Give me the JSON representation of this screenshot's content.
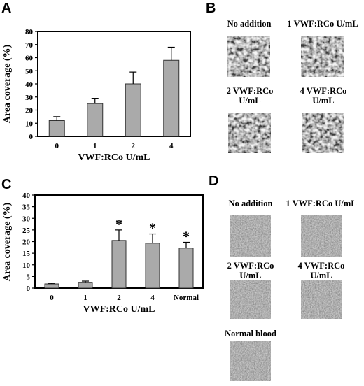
{
  "panels": {
    "a": "A",
    "b": "B",
    "c": "C",
    "d": "D"
  },
  "chart_data": [
    {
      "type": "bar",
      "panel": "A",
      "categories": [
        "0",
        "1",
        "2",
        "4"
      ],
      "values": [
        12,
        25,
        40,
        58
      ],
      "errors": [
        3,
        4,
        9,
        10
      ],
      "xlabel": "VWF:RCo U/mL",
      "ylabel": "Area coverage (%)",
      "ylim": [
        0,
        80
      ],
      "yticks": [
        "0",
        "10",
        "20",
        "30",
        "40",
        "50",
        "60",
        "70",
        "80"
      ],
      "bar_color": "#aaaaaa",
      "annotations": []
    },
    {
      "type": "bar",
      "panel": "C",
      "categories": [
        "0",
        "1",
        "2",
        "4",
        "Normal"
      ],
      "values": [
        1.8,
        2.5,
        20.5,
        19.3,
        17.2
      ],
      "errors": [
        0.3,
        0.5,
        4.5,
        4,
        2.5
      ],
      "xlabel": "VWF:RCo U/mL",
      "ylabel": "Area coverage (%)",
      "ylim": [
        0,
        40
      ],
      "yticks": [
        "0",
        "5",
        "10",
        "15",
        "20",
        "25",
        "30",
        "35",
        "40"
      ],
      "bar_color": "#aaaaaa",
      "annotations": [
        "",
        "",
        "*",
        "*",
        "*"
      ]
    }
  ],
  "panel_b": {
    "images": [
      {
        "label_lines": [
          "No addition"
        ],
        "name": "b-no-addition"
      },
      {
        "label_lines": [
          "1 VWF:RCo U/mL"
        ],
        "name": "b-1-vwf"
      },
      {
        "label_lines": [
          "2 VWF:RCo",
          "U/mL"
        ],
        "name": "b-2-vwf"
      },
      {
        "label_lines": [
          "4 VWF:RCo",
          "U/mL"
        ],
        "name": "b-4-vwf"
      }
    ]
  },
  "panel_d": {
    "images": [
      {
        "label_lines": [
          "No addition"
        ],
        "name": "d-no-addition"
      },
      {
        "label_lines": [
          "1 VWF:RCo U/mL"
        ],
        "name": "d-1-vwf"
      },
      {
        "label_lines": [
          "2 VWF:RCo",
          "U/mL"
        ],
        "name": "d-2-vwf"
      },
      {
        "label_lines": [
          "4 VWF:RCo",
          "U/mL"
        ],
        "name": "d-4-vwf"
      },
      {
        "label_lines": [
          "Normal blood"
        ],
        "name": "d-normal-blood"
      }
    ]
  },
  "colors": {
    "bar_fill": "#aaaaaa",
    "bar_stroke": "#333333",
    "micrograph_dark": "#1a1a1a",
    "micrograph_light": "#e6e6e6"
  }
}
